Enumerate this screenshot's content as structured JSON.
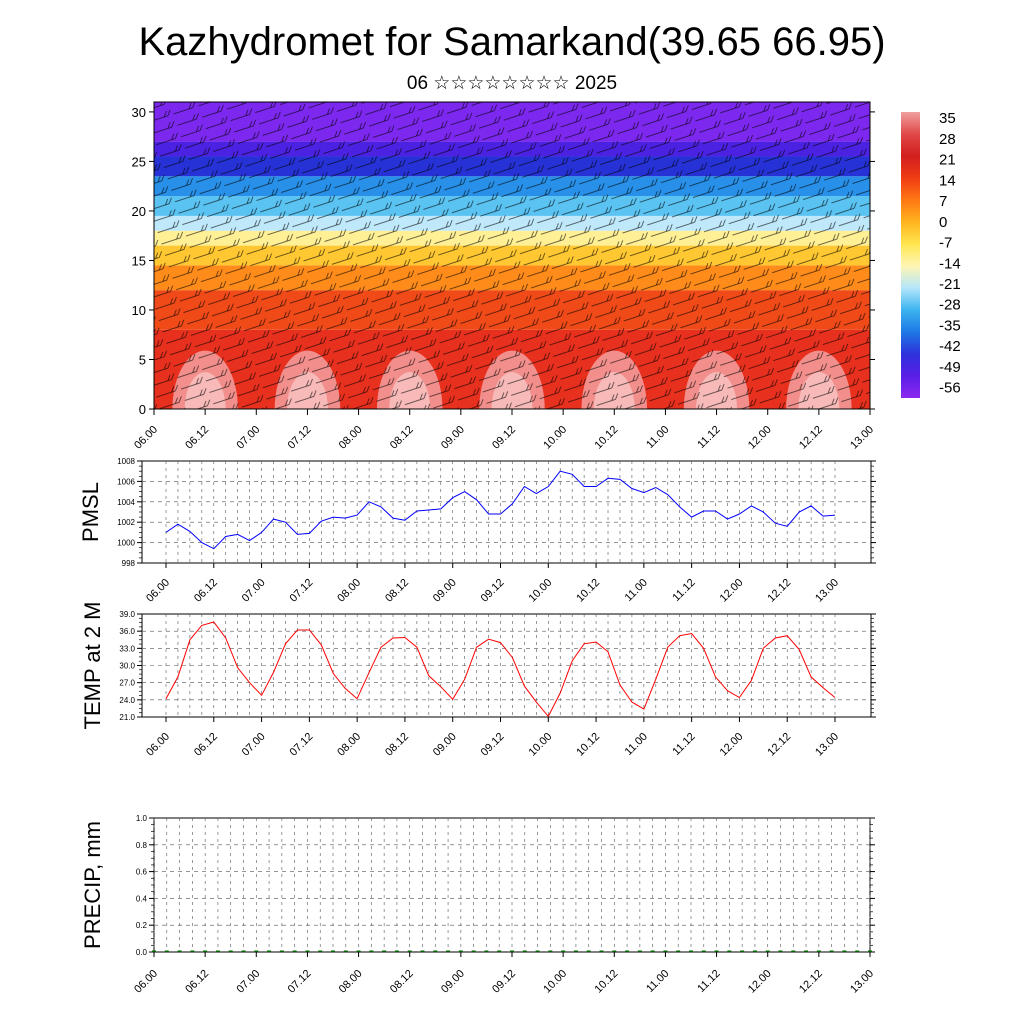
{
  "page": {
    "title": "Kazhydromet for Samarkand(39.65 66.95)",
    "subtitle": "06 ☆☆☆☆☆☆☆☆ 2025"
  },
  "chart_data": [
    {
      "type": "heatmap",
      "title": "Kazhydromet for Samarkand(39.65 66.95)",
      "subtitle": "06 ☆☆☆☆☆☆☆☆ 2025",
      "description_values": "temperature (colour) and wind barbs versus time and level",
      "x_ticks": [
        "06.00",
        "06.12",
        "07.00",
        "07.12",
        "08.00",
        "08.12",
        "09.00",
        "09.12",
        "10.00",
        "10.12",
        "11.00",
        "11.12",
        "12.00",
        "12.12",
        "13.00"
      ],
      "y_ticks": [
        0,
        5,
        10,
        15,
        20,
        25,
        30
      ],
      "ylim": [
        0,
        31
      ],
      "colorbar": {
        "labels": [
          "35",
          "28",
          "21",
          "14",
          "7",
          "0",
          "-7",
          "-14",
          "-21",
          "-28",
          "-35",
          "-42",
          "-49",
          "-56"
        ],
        "colors": [
          "#f0a0a0",
          "#e04848",
          "#d21e1e",
          "#f03c14",
          "#ff7814",
          "#ffb41e",
          "#ffe650",
          "#fff5b4",
          "#b4e6fa",
          "#3cb4f0",
          "#1e78e6",
          "#2d32dc",
          "#5a1ee6",
          "#8c28f0"
        ]
      },
      "color_bands": [
        {
          "y0": 0,
          "y1": 8,
          "color": "#e8301e"
        },
        {
          "y0": 8,
          "y1": 12,
          "color": "#f04a18"
        },
        {
          "y0": 12,
          "y1": 14.5,
          "color": "#ff8c1a"
        },
        {
          "y0": 14.5,
          "y1": 16.5,
          "color": "#ffc832"
        },
        {
          "y0": 16.5,
          "y1": 18,
          "color": "#fff096"
        },
        {
          "y0": 18,
          "y1": 19.5,
          "color": "#bfe8fa"
        },
        {
          "y0": 19.5,
          "y1": 21.5,
          "color": "#5ac3f2"
        },
        {
          "y0": 21.5,
          "y1": 23.5,
          "color": "#2890e8"
        },
        {
          "y0": 23.5,
          "y1": 25.5,
          "color": "#2632d6"
        },
        {
          "y0": 25.5,
          "y1": 27,
          "color": "#4c22e2"
        },
        {
          "y0": 27,
          "y1": 31,
          "color": "#7d28ee"
        }
      ],
      "warm_cores_x": [
        0.5,
        1.5,
        2.5,
        3.5,
        4.5,
        5.5,
        6.5
      ]
    },
    {
      "type": "line",
      "ylabel": "PMSL",
      "xlabel": "",
      "ylim": [
        998,
        1008
      ],
      "y_ticks": [
        998,
        1000,
        1002,
        1004,
        1006,
        1008
      ],
      "x_ticks": [
        "06.00",
        "06.12",
        "07.00",
        "07.12",
        "08.00",
        "08.12",
        "09.00",
        "09.12",
        "10.00",
        "10.12",
        "11.00",
        "11.12",
        "12.00",
        "12.12",
        "13.00"
      ],
      "color": "#0000ff",
      "series": [
        {
          "values": [
            1001.0,
            1001.8,
            1001.1,
            1000.0,
            999.4,
            1000.6,
            1000.8,
            1000.2,
            1001.0,
            1002.3,
            1002.0,
            1000.8,
            1000.9,
            1002.1,
            1002.5,
            1002.4,
            1002.7,
            1004.0,
            1003.5,
            1002.4,
            1002.2,
            1003.1,
            1003.2,
            1003.3,
            1004.4,
            1005.0,
            1004.2,
            1002.8,
            1002.8,
            1003.8,
            1005.5,
            1004.8,
            1005.5,
            1007.0,
            1006.7,
            1005.5,
            1005.5,
            1006.3,
            1006.2,
            1005.3,
            1004.9,
            1005.4,
            1004.7,
            1003.5,
            1002.5,
            1003.1,
            1003.1,
            1002.3,
            1002.8,
            1003.6,
            1003.0,
            1001.9,
            1001.6,
            1003.0,
            1003.6,
            1002.6,
            1002.7
          ]
        }
      ]
    },
    {
      "type": "line",
      "ylabel": "TEMP at 2 M",
      "xlabel": "",
      "ylim": [
        21,
        39
      ],
      "y_ticks": [
        "21.0",
        "24.0",
        "27.0",
        "30.0",
        "33.0",
        "36.0",
        "39.0"
      ],
      "x_ticks": [
        "06.00",
        "06.12",
        "07.00",
        "07.12",
        "08.00",
        "08.12",
        "09.00",
        "09.12",
        "10.00",
        "10.12",
        "11.00",
        "11.12",
        "12.00",
        "12.12",
        "13.00"
      ],
      "color": "#ff0000",
      "series": [
        {
          "values": [
            24.2,
            28.0,
            34.5,
            37.0,
            37.6,
            34.8,
            29.6,
            27.0,
            24.8,
            28.8,
            33.8,
            36.2,
            36.2,
            33.6,
            28.6,
            26.0,
            24.2,
            28.8,
            33.2,
            34.8,
            34.9,
            33.2,
            28.2,
            26.3,
            24.1,
            27.6,
            33.2,
            34.6,
            34.0,
            31.4,
            26.4,
            23.6,
            21.1,
            25.2,
            30.8,
            33.8,
            34.1,
            32.4,
            26.6,
            23.6,
            22.4,
            27.6,
            33.2,
            35.2,
            35.6,
            33.0,
            28.0,
            25.6,
            24.4,
            27.4,
            33.0,
            34.8,
            35.2,
            32.8,
            28.0,
            26.1,
            24.4
          ]
        }
      ]
    },
    {
      "type": "bar",
      "ylabel": "PRECIP, mm",
      "xlabel": "",
      "ylim": [
        0,
        1
      ],
      "y_ticks": [
        "0.0",
        "0.2",
        "0.4",
        "0.6",
        "0.8",
        "1.0"
      ],
      "x_ticks": [
        "06.00",
        "06.12",
        "07.00",
        "07.12",
        "08.00",
        "08.12",
        "09.00",
        "09.12",
        "10.00",
        "10.12",
        "11.00",
        "11.12",
        "12.00",
        "12.12",
        "13.00"
      ],
      "color": "#006400",
      "series": [
        {
          "values": [
            0,
            0,
            0,
            0,
            0,
            0,
            0,
            0,
            0,
            0,
            0,
            0,
            0,
            0,
            0,
            0,
            0,
            0,
            0,
            0,
            0,
            0,
            0,
            0,
            0,
            0,
            0,
            0,
            0,
            0,
            0,
            0,
            0,
            0,
            0,
            0,
            0,
            0,
            0,
            0,
            0,
            0,
            0,
            0,
            0,
            0,
            0,
            0,
            0,
            0,
            0,
            0,
            0,
            0,
            0,
            0,
            0
          ]
        }
      ]
    }
  ]
}
